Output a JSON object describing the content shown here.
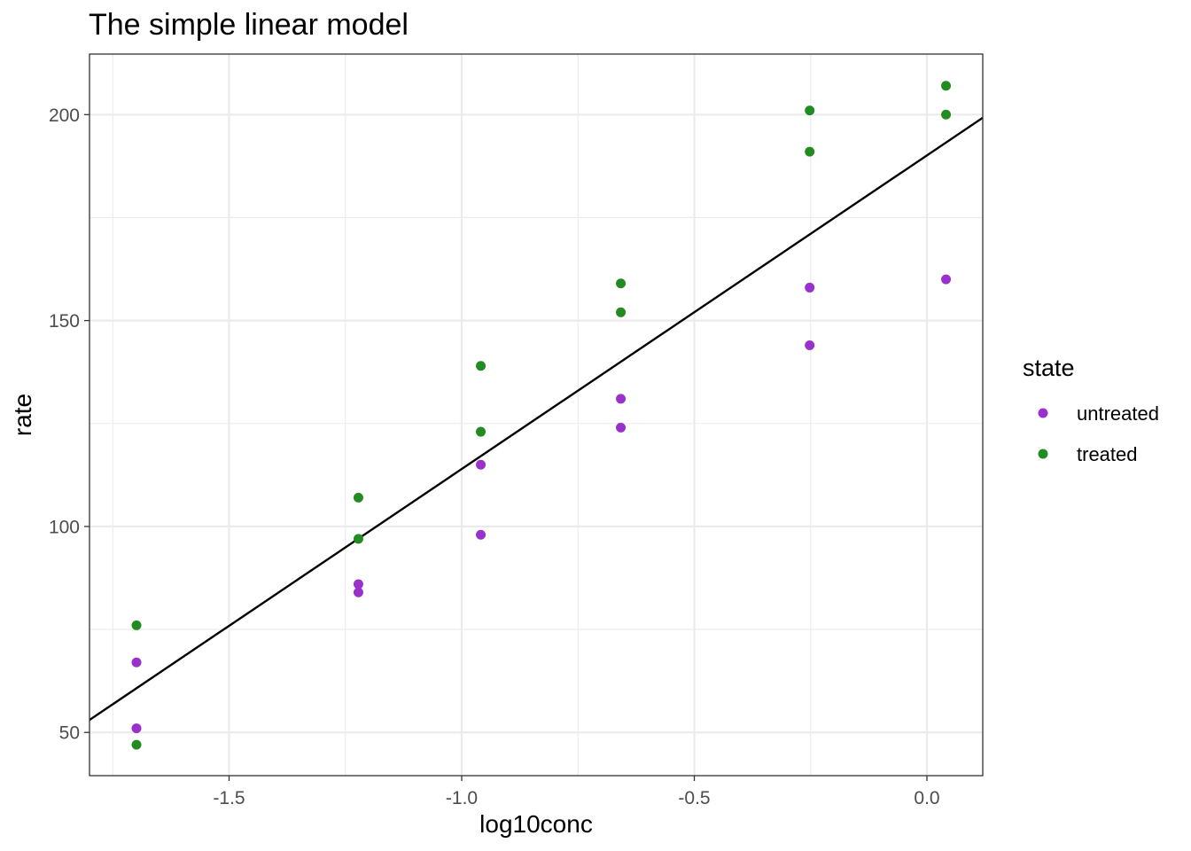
{
  "chart_data": {
    "type": "scatter",
    "title": "The simple linear model",
    "xlabel": "log10conc",
    "ylabel": "rate",
    "xlim": [
      -1.8,
      0.12
    ],
    "ylim": [
      39.5,
      214.7
    ],
    "x_ticks": [
      {
        "value": -1.5,
        "label": "-1.5"
      },
      {
        "value": -1.0,
        "label": "-1.0"
      },
      {
        "value": -0.5,
        "label": "-0.5"
      },
      {
        "value": 0.0,
        "label": "0.0"
      }
    ],
    "y_ticks": [
      {
        "value": 50,
        "label": "50"
      },
      {
        "value": 100,
        "label": "100"
      },
      {
        "value": 150,
        "label": "150"
      },
      {
        "value": 200,
        "label": "200"
      }
    ],
    "x_minor_grid": [
      -1.75,
      -1.25,
      -0.75,
      -0.25
    ],
    "y_minor_grid": [
      75,
      125,
      175
    ],
    "grid": true,
    "legend": {
      "title": "state",
      "position": "right",
      "entries": [
        {
          "label": "untreated",
          "color": "#9932CC"
        },
        {
          "label": "treated",
          "color": "#228B22"
        }
      ]
    },
    "series": [
      {
        "name": "untreated",
        "color": "#9932CC",
        "points": [
          {
            "x": -1.699,
            "y": 67
          },
          {
            "x": -1.699,
            "y": 51
          },
          {
            "x": -1.222,
            "y": 84
          },
          {
            "x": -1.222,
            "y": 86
          },
          {
            "x": -0.959,
            "y": 98
          },
          {
            "x": -0.959,
            "y": 115
          },
          {
            "x": -0.658,
            "y": 131
          },
          {
            "x": -0.658,
            "y": 124
          },
          {
            "x": -0.252,
            "y": 144
          },
          {
            "x": -0.252,
            "y": 158
          },
          {
            "x": 0.041,
            "y": 160
          }
        ]
      },
      {
        "name": "treated",
        "color": "#228B22",
        "points": [
          {
            "x": -1.699,
            "y": 76
          },
          {
            "x": -1.699,
            "y": 47
          },
          {
            "x": -1.222,
            "y": 97
          },
          {
            "x": -1.222,
            "y": 107
          },
          {
            "x": -0.959,
            "y": 123
          },
          {
            "x": -0.959,
            "y": 139
          },
          {
            "x": -0.658,
            "y": 159
          },
          {
            "x": -0.658,
            "y": 152
          },
          {
            "x": -0.252,
            "y": 191
          },
          {
            "x": -0.252,
            "y": 201
          },
          {
            "x": 0.041,
            "y": 207
          },
          {
            "x": 0.041,
            "y": 200
          }
        ]
      }
    ],
    "fit_line": {
      "type": "linear",
      "color": "#000000",
      "intercept": 190.1,
      "slope": 76.15
    }
  }
}
